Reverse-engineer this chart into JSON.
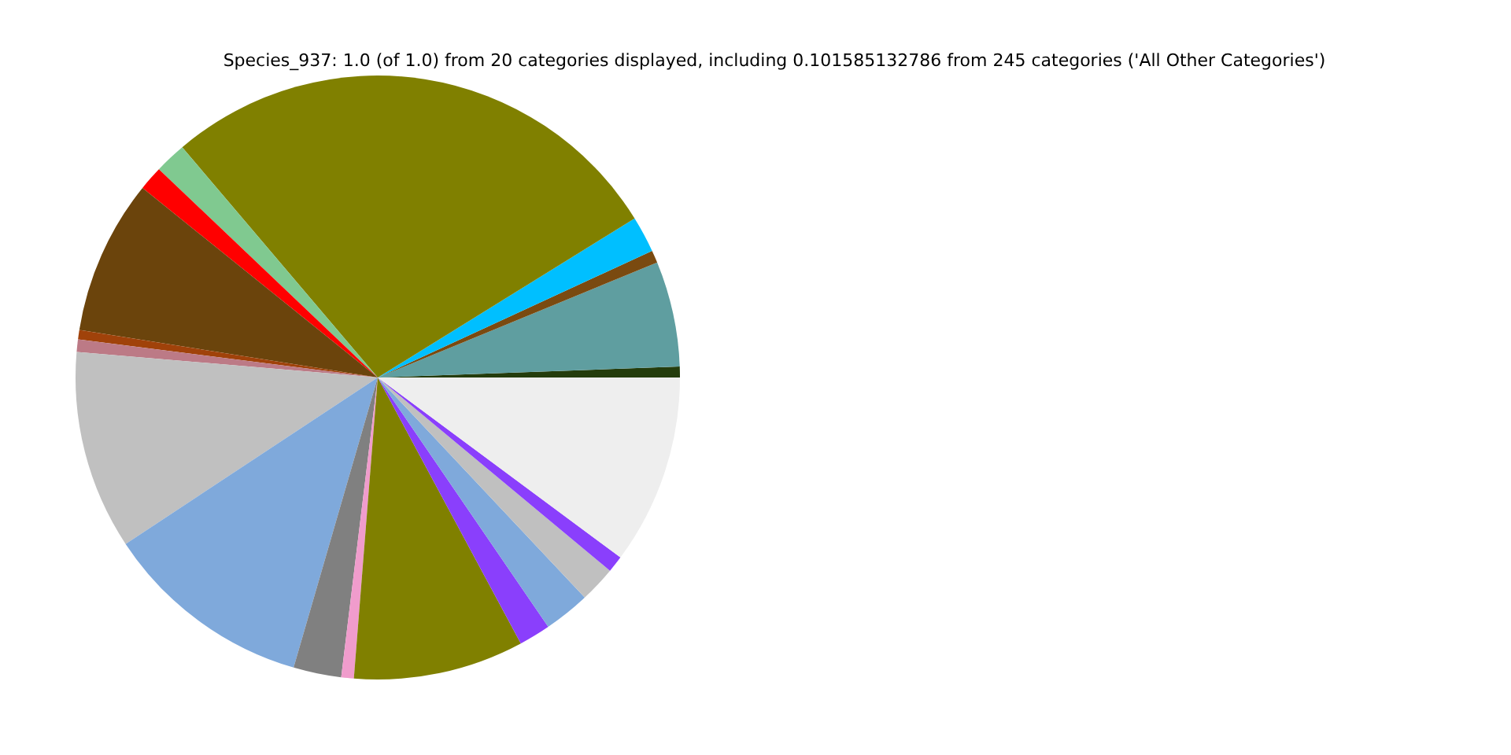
{
  "chart_data": {
    "type": "pie",
    "title": "Species_937: 1.0 (of 1.0) from 20 categories displayed, including 0.101585132786 from 245 categories ('All Other Categories')",
    "categories": [
      null,
      null,
      null,
      null,
      null,
      null,
      null,
      null,
      null,
      null,
      null,
      null,
      null,
      null,
      null,
      null,
      null,
      null,
      null,
      null
    ],
    "values": [
      0.58,
      5.64,
      0.67,
      1.94,
      27.37,
      1.69,
      1.31,
      8.28,
      0.5,
      0.67,
      10.64,
      11.22,
      2.56,
      0.67,
      9.11,
      1.69,
      2.47,
      1.94,
      0.89,
      10.16
    ],
    "colors": [
      "#243c0c",
      "#5f9ea0",
      "#7a4a10",
      "#00bfff",
      "#808000",
      "#80c990",
      "#ff0000",
      "#6b440c",
      "#a0420a",
      "#bc7a86",
      "#c0c0c0",
      "#7fa9db",
      "#808080",
      "#f09ccc",
      "#808000",
      "#8a3ffc",
      "#7fa9db",
      "#c0c0c0",
      "#8a3ffc",
      "#eeeeee"
    ],
    "legend": false
  }
}
